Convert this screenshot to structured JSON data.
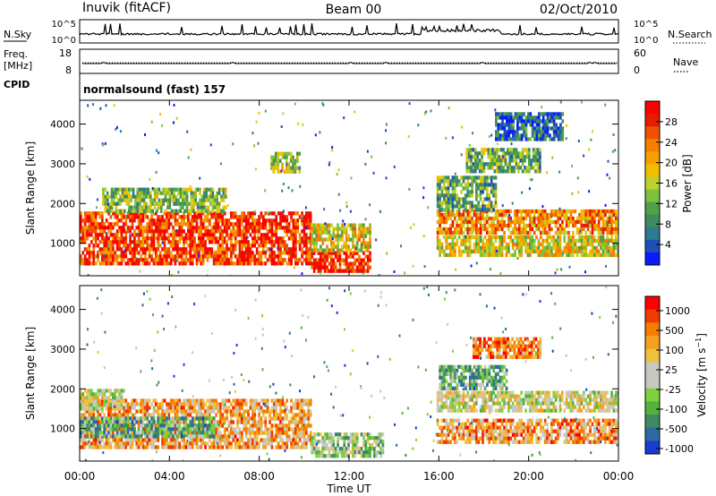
{
  "header": {
    "title": "Inuvik (fitACF)",
    "beam": "Beam 00",
    "date": "02/Oct/2010"
  },
  "info_panels": {
    "nsky_label": "N.Sky",
    "nsky_ticks": [
      "10^5",
      "10^0"
    ],
    "nsearch_label": "N.Search",
    "nsearch_ticks": [
      "10^5",
      "10^0"
    ],
    "freq_label_1": "Freq.",
    "freq_label_2": "[MHz]",
    "freq_ticks": [
      "18",
      "8"
    ],
    "nave_label": "Nave",
    "nave_ticks": [
      "60",
      "0"
    ],
    "cpid_label": "CPID",
    "cpid_text": "normalsound (fast) 157"
  },
  "chart_data": [
    {
      "type": "heatmap",
      "name": "power",
      "ylabel": "Slant Range [km]",
      "yticks": [
        1000,
        2000,
        3000,
        4000
      ],
      "ylim": [
        180,
        4600
      ],
      "xlim": [
        0,
        24
      ],
      "colorbar": {
        "label": "Power [dB]",
        "range": [
          0,
          32
        ],
        "ticks": [
          "4",
          "8",
          "12",
          "16",
          "20",
          "24",
          "28"
        ],
        "colors": [
          "#0a1cff",
          "#1d4fb8",
          "#2e7a8e",
          "#3f8a5e",
          "#4fa04a",
          "#7cc23c",
          "#bfd12f",
          "#f0c000",
          "#f5a000",
          "#f57d00",
          "#f05000",
          "#e51c00",
          "#ff0000"
        ]
      },
      "bands": [
        {
          "t0": 0.0,
          "t1": 10.3,
          "r0": 500,
          "r1": 1800,
          "level": 0.85
        },
        {
          "t0": 10.3,
          "t1": 12.9,
          "r0": 280,
          "r1": 800,
          "level": 0.9
        },
        {
          "t0": 10.3,
          "t1": 12.9,
          "r0": 800,
          "r1": 1500,
          "level": 0.55
        },
        {
          "t0": 15.9,
          "t1": 24.0,
          "r0": 700,
          "r1": 1200,
          "level": 0.55
        },
        {
          "t0": 15.9,
          "t1": 24.0,
          "r0": 1300,
          "r1": 1850,
          "level": 0.7
        },
        {
          "t0": 15.9,
          "t1": 18.5,
          "r0": 1850,
          "r1": 2700,
          "level": 0.35
        },
        {
          "t0": 17.2,
          "t1": 20.5,
          "r0": 2800,
          "r1": 3400,
          "level": 0.35
        },
        {
          "t0": 18.5,
          "t1": 21.5,
          "r0": 3600,
          "r1": 4300,
          "level": 0.2
        },
        {
          "t0": 1.0,
          "t1": 6.5,
          "r0": 1800,
          "r1": 2400,
          "level": 0.4
        },
        {
          "t0": 8.5,
          "t1": 9.8,
          "r0": 2800,
          "r1": 3300,
          "level": 0.45
        }
      ]
    },
    {
      "type": "heatmap",
      "name": "velocity",
      "ylabel": "Slant Range [km]",
      "xlabel": "Time UT",
      "yticks": [
        1000,
        2000,
        3000,
        4000
      ],
      "ylim": [
        180,
        4600
      ],
      "xlim": [
        0,
        24
      ],
      "xticks": [
        "00:00",
        "04:00",
        "08:00",
        "12:00",
        "16:00",
        "20:00",
        "00:00"
      ],
      "colorbar": {
        "label": "Velocity [m s-1]",
        "ticks": [
          "1000",
          "500",
          "100",
          "25",
          "-25",
          "-100",
          "-500",
          "-1000"
        ],
        "colors": [
          "#1a3cd2",
          "#2e6aa0",
          "#3f8a60",
          "#56b040",
          "#7dd040",
          "#c8c8c0",
          "#c8c8c0",
          "#f0c040",
          "#f5a020",
          "#f57d00",
          "#f03c00",
          "#ff0000"
        ]
      },
      "bands": [
        {
          "t0": 0.0,
          "t1": 10.3,
          "r0": 500,
          "r1": 1750,
          "level": 0.7
        },
        {
          "t0": 0.0,
          "t1": 6.0,
          "r0": 800,
          "r1": 1300,
          "level": 0.3
        },
        {
          "t0": 10.3,
          "t1": 13.5,
          "r0": 280,
          "r1": 900,
          "level": 0.4
        },
        {
          "t0": 15.9,
          "t1": 24.0,
          "r0": 1450,
          "r1": 1950,
          "level": 0.5
        },
        {
          "t0": 15.9,
          "t1": 24.0,
          "r0": 700,
          "r1": 1250,
          "level": 0.72
        },
        {
          "t0": 17.5,
          "t1": 20.5,
          "r0": 2800,
          "r1": 3300,
          "level": 0.78
        },
        {
          "t0": 16.0,
          "t1": 19.0,
          "r0": 2000,
          "r1": 2600,
          "level": 0.3
        },
        {
          "t0": 0.0,
          "t1": 2.0,
          "r0": 1500,
          "r1": 2000,
          "level": 0.5
        }
      ]
    }
  ]
}
